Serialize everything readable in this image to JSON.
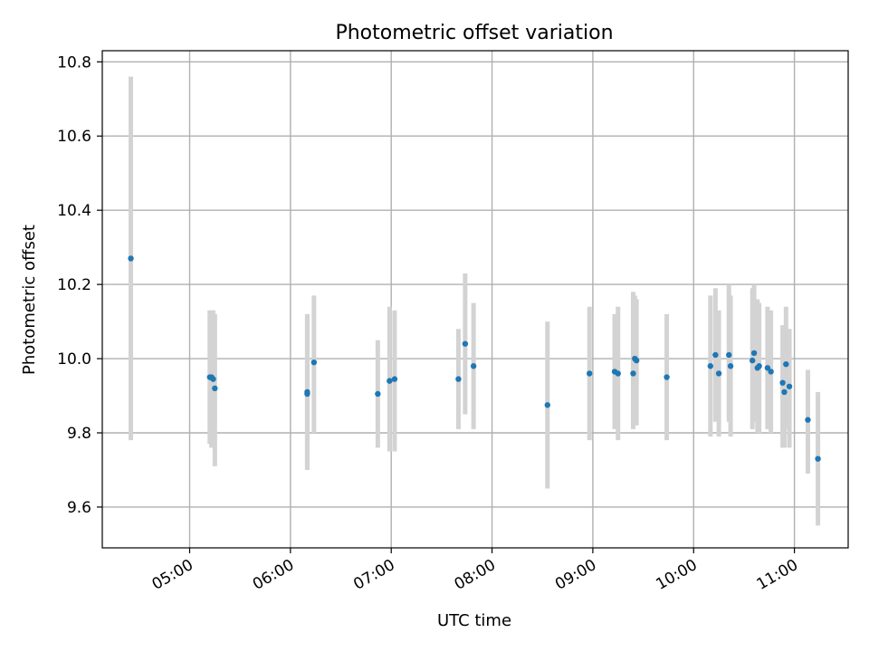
{
  "chart_data": {
    "type": "scatter",
    "title": "Photometric offset variation",
    "xlabel": "UTC time",
    "ylabel": "Photometric offset",
    "x_format": "HH:MM",
    "xlim": [
      "04:08",
      "11:32"
    ],
    "ylim": [
      9.49,
      10.83
    ],
    "x_ticks": [
      "05:00",
      "06:00",
      "07:00",
      "08:00",
      "09:00",
      "10:00",
      "11:00"
    ],
    "y_ticks": [
      9.6,
      9.8,
      10.0,
      10.2,
      10.4,
      10.6,
      10.8
    ],
    "grid": true,
    "colors": {
      "point": "#1f77b4",
      "errorbar": "#d3d3d3",
      "grid": "#b0b0b0"
    },
    "points": [
      {
        "t": "04:25",
        "y": 10.27,
        "lo": 9.78,
        "hi": 10.76
      },
      {
        "t": "05:12",
        "y": 9.95,
        "lo": 9.77,
        "hi": 10.13
      },
      {
        "t": "05:13",
        "y": 9.95,
        "lo": 9.76,
        "hi": 10.13
      },
      {
        "t": "05:14",
        "y": 9.945,
        "lo": 9.76,
        "hi": 10.13
      },
      {
        "t": "05:15",
        "y": 9.92,
        "lo": 9.71,
        "hi": 10.12
      },
      {
        "t": "06:10",
        "y": 9.91,
        "lo": 9.7,
        "hi": 10.12
      },
      {
        "t": "06:10",
        "y": 9.905,
        "lo": 9.7,
        "hi": 10.12
      },
      {
        "t": "06:14",
        "y": 9.99,
        "lo": 9.8,
        "hi": 10.17
      },
      {
        "t": "06:52",
        "y": 9.905,
        "lo": 9.76,
        "hi": 10.05
      },
      {
        "t": "06:59",
        "y": 9.94,
        "lo": 9.75,
        "hi": 10.14
      },
      {
        "t": "07:02",
        "y": 9.945,
        "lo": 9.75,
        "hi": 10.13
      },
      {
        "t": "07:40",
        "y": 9.945,
        "lo": 9.81,
        "hi": 10.08
      },
      {
        "t": "07:44",
        "y": 10.04,
        "lo": 9.85,
        "hi": 10.23
      },
      {
        "t": "07:49",
        "y": 9.98,
        "lo": 9.81,
        "hi": 10.15
      },
      {
        "t": "08:33",
        "y": 9.875,
        "lo": 9.65,
        "hi": 10.1
      },
      {
        "t": "08:58",
        "y": 9.96,
        "lo": 9.78,
        "hi": 10.14
      },
      {
        "t": "09:13",
        "y": 9.965,
        "lo": 9.81,
        "hi": 10.12
      },
      {
        "t": "09:15",
        "y": 9.96,
        "lo": 9.78,
        "hi": 10.14
      },
      {
        "t": "09:24",
        "y": 9.96,
        "lo": 9.81,
        "hi": 10.18
      },
      {
        "t": "09:25",
        "y": 10.0,
        "lo": 9.82,
        "hi": 10.17
      },
      {
        "t": "09:26",
        "y": 9.995,
        "lo": 9.82,
        "hi": 10.16
      },
      {
        "t": "09:44",
        "y": 9.95,
        "lo": 9.78,
        "hi": 10.12
      },
      {
        "t": "10:10",
        "y": 9.98,
        "lo": 9.79,
        "hi": 10.17
      },
      {
        "t": "10:13",
        "y": 10.01,
        "lo": 9.83,
        "hi": 10.19
      },
      {
        "t": "10:15",
        "y": 9.96,
        "lo": 9.79,
        "hi": 10.13
      },
      {
        "t": "10:21",
        "y": 10.01,
        "lo": 9.83,
        "hi": 10.2
      },
      {
        "t": "10:22",
        "y": 9.98,
        "lo": 9.79,
        "hi": 10.17
      },
      {
        "t": "10:35",
        "y": 9.995,
        "lo": 9.81,
        "hi": 10.19
      },
      {
        "t": "10:36",
        "y": 10.015,
        "lo": 9.83,
        "hi": 10.2
      },
      {
        "t": "10:38",
        "y": 9.975,
        "lo": 9.8,
        "hi": 10.16
      },
      {
        "t": "10:39",
        "y": 9.98,
        "lo": 9.8,
        "hi": 10.15
      },
      {
        "t": "10:44",
        "y": 9.975,
        "lo": 9.81,
        "hi": 10.14
      },
      {
        "t": "10:46",
        "y": 9.965,
        "lo": 9.8,
        "hi": 10.13
      },
      {
        "t": "10:53",
        "y": 9.935,
        "lo": 9.76,
        "hi": 10.09
      },
      {
        "t": "10:54",
        "y": 9.91,
        "lo": 9.76,
        "hi": 10.06
      },
      {
        "t": "10:55",
        "y": 9.985,
        "lo": 9.81,
        "hi": 10.14
      },
      {
        "t": "10:57",
        "y": 9.925,
        "lo": 9.76,
        "hi": 10.08
      },
      {
        "t": "11:08",
        "y": 9.835,
        "lo": 9.69,
        "hi": 9.97
      },
      {
        "t": "11:14",
        "y": 9.73,
        "lo": 9.55,
        "hi": 9.91
      }
    ]
  }
}
